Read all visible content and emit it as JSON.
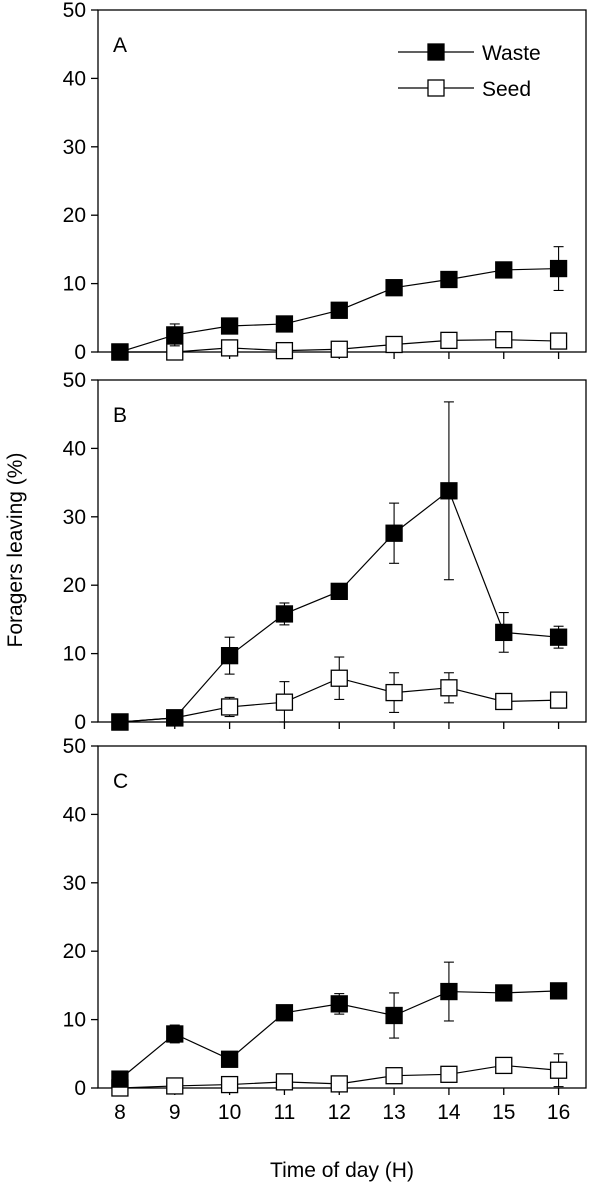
{
  "chart_data": {
    "type": "line",
    "xlabel": "Time of day (H)",
    "ylabel": "Foragers leaving (%)",
    "x": [
      8,
      9,
      10,
      11,
      12,
      13,
      14,
      15,
      16
    ],
    "x_ticks": [
      "8",
      "9",
      "10",
      "11",
      "12",
      "13",
      "14",
      "15",
      "16"
    ],
    "y_ticks": [
      "0",
      "10",
      "20",
      "30",
      "40",
      "50"
    ],
    "xlim": [
      7.6,
      16.5
    ],
    "ylim": [
      0,
      50
    ],
    "legend": {
      "placement": "top-right",
      "entries": [
        {
          "label": "Waste",
          "marker": "filled-square"
        },
        {
          "label": "Seed",
          "marker": "open-square"
        }
      ]
    },
    "panels": [
      {
        "label": "A",
        "series": [
          {
            "legend": "Waste",
            "marker": "filled-square",
            "values": [
              0,
              2.5,
              3.8,
              4.1,
              6.1,
              9.4,
              10.6,
              12.0,
              12.2
            ],
            "errors": [
              0,
              1.6,
              0.7,
              0.6,
              0.5,
              0.7,
              0.8,
              0.7,
              3.2
            ]
          },
          {
            "legend": "Seed",
            "marker": "open-square",
            "values": [
              0,
              0,
              0.6,
              0.2,
              0.4,
              1.1,
              1.7,
              1.8,
              1.6
            ],
            "errors": [
              0,
              0.4,
              0.7,
              0.4,
              0.5,
              0.5,
              0.5,
              0.6,
              0.5
            ]
          }
        ]
      },
      {
        "label": "B",
        "series": [
          {
            "legend": "Waste",
            "marker": "filled-square",
            "values": [
              0,
              0.6,
              9.7,
              15.8,
              19.1,
              27.6,
              33.8,
              13.1,
              12.4
            ],
            "errors": [
              0,
              0.3,
              2.7,
              1.6,
              1.0,
              4.4,
              13.0,
              2.9,
              1.6
            ]
          },
          {
            "legend": "Seed",
            "marker": "open-square",
            "values": [
              0,
              0.6,
              2.2,
              2.9,
              6.4,
              4.3,
              5.0,
              3.0,
              3.2
            ],
            "errors": [
              0,
              0.4,
              1.4,
              3.0,
              3.1,
              2.9,
              2.2,
              0.4,
              1.0
            ]
          }
        ]
      },
      {
        "label": "C",
        "series": [
          {
            "legend": "Waste",
            "marker": "filled-square",
            "values": [
              1.3,
              7.9,
              4.2,
              11.0,
              12.3,
              10.6,
              14.1,
              13.9,
              14.2
            ],
            "errors": [
              0.3,
              1.3,
              0.6,
              0.6,
              1.5,
              3.3,
              4.3,
              1.0,
              0.8
            ]
          },
          {
            "legend": "Seed",
            "marker": "open-square",
            "values": [
              0,
              0.3,
              0.5,
              0.9,
              0.6,
              1.8,
              2.0,
              3.3,
              2.6
            ],
            "errors": [
              0,
              0.3,
              0.5,
              0.5,
              0.4,
              0.6,
              0.7,
              0.5,
              2.4
            ]
          }
        ]
      }
    ]
  }
}
